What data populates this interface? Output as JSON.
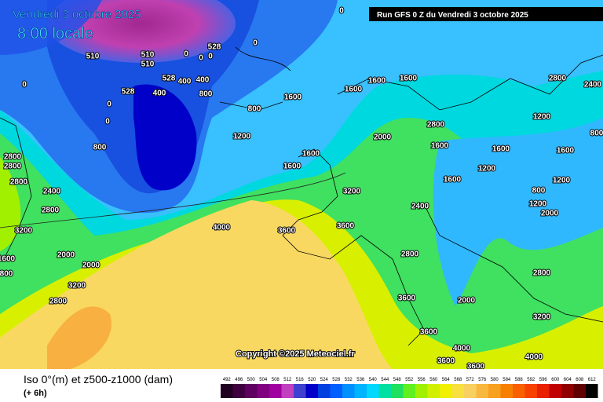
{
  "header": {
    "date": "Vendredi 3 octobre 2025",
    "time": "8:00 locale",
    "run": "Run GFS 0 Z du Vendredi 3 octobre 2025"
  },
  "footer": {
    "copyright": "Copyright ©2025 Meteociel.fr",
    "title": "Iso 0°(m) et z500-z1000 (dam)",
    "subtitle": "(+ 6h)"
  },
  "scale": {
    "values": [
      492,
      496,
      500,
      504,
      508,
      512,
      516,
      520,
      524,
      528,
      532,
      536,
      540,
      544,
      548,
      552,
      556,
      560,
      564,
      568,
      572,
      576,
      580,
      584,
      588,
      592,
      596,
      600,
      604,
      608,
      612
    ],
    "colors": [
      "#200020",
      "#400040",
      "#600060",
      "#800080",
      "#a000a0",
      "#c040c0",
      "#4040d0",
      "#0000c8",
      "#0040e0",
      "#0060ff",
      "#0090ff",
      "#00b4ff",
      "#00d8ff",
      "#00e0a0",
      "#20e060",
      "#60f020",
      "#a0f000",
      "#d0f000",
      "#f0f000",
      "#f8e040",
      "#f8d060",
      "#f8b840",
      "#f8a020",
      "#f88000",
      "#f86000",
      "#f84000",
      "#e82000",
      "#c00000",
      "#900000",
      "#600000",
      "#000000"
    ]
  },
  "contour_labels": [
    0,
    0,
    0,
    0,
    0,
    0,
    0,
    0,
    510,
    510,
    510,
    528,
    528,
    528,
    400,
    400,
    400,
    800,
    800,
    800,
    1200,
    1600,
    1600,
    1600,
    1600,
    1600,
    1600,
    2800,
    2800,
    2800,
    2400,
    2800,
    3200,
    4000,
    3600,
    3200,
    3600,
    2000,
    2000,
    2800,
    3200,
    1600,
    800,
    2800,
    2000,
    1600,
    1600,
    1200,
    1600,
    1600,
    800,
    1200,
    1200,
    800,
    1200,
    2000,
    2400,
    2800,
    3600,
    2000,
    3200,
    3600,
    4000,
    4000,
    3600,
    3600,
    2800,
    2800,
    2400
  ]
}
